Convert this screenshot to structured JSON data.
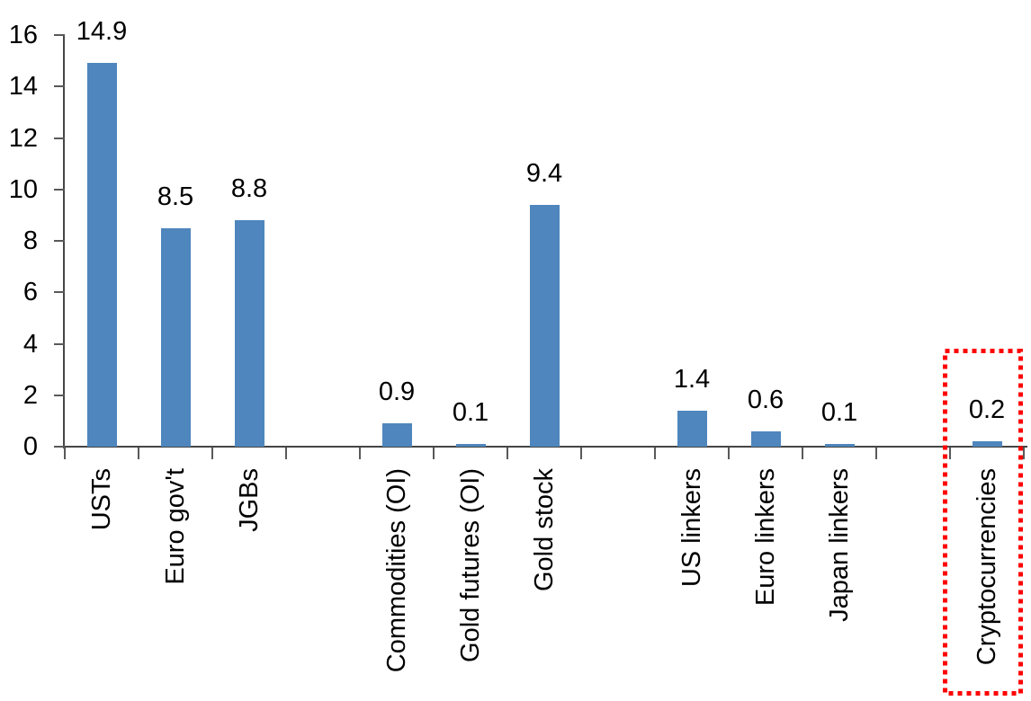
{
  "chart_data": {
    "type": "bar",
    "title": "",
    "categories": [
      "USTs",
      "Euro gov't",
      "JGBs",
      "",
      "Commodities (OI)",
      "Gold futures (OI)",
      "Gold stock",
      "",
      "US linkers",
      "Euro linkers",
      "Japan linkers",
      "",
      "Cryptocurrencies"
    ],
    "values": [
      14.9,
      8.5,
      8.8,
      null,
      0.9,
      0.1,
      9.4,
      null,
      1.4,
      0.6,
      0.1,
      null,
      0.2
    ],
    "data_labels": [
      "14.9",
      "8.5",
      "8.8",
      "",
      "0.9",
      "0.1",
      "9.4",
      "",
      "1.4",
      "0.6",
      "0.1",
      "",
      "0.2"
    ],
    "xlabel": "",
    "ylabel": "",
    "ylim": [
      0,
      16
    ],
    "yticks": [
      0,
      2,
      4,
      6,
      8,
      10,
      12,
      14,
      16
    ],
    "grid": false,
    "legend": "none",
    "bar_color": "#4e86bd",
    "axis_color": "#454545",
    "tick_color": "#595959",
    "text_color": "#000000",
    "highlight": {
      "category": "Cryptocurrencies",
      "style": "dotted-box",
      "color": "#ff0000"
    }
  }
}
